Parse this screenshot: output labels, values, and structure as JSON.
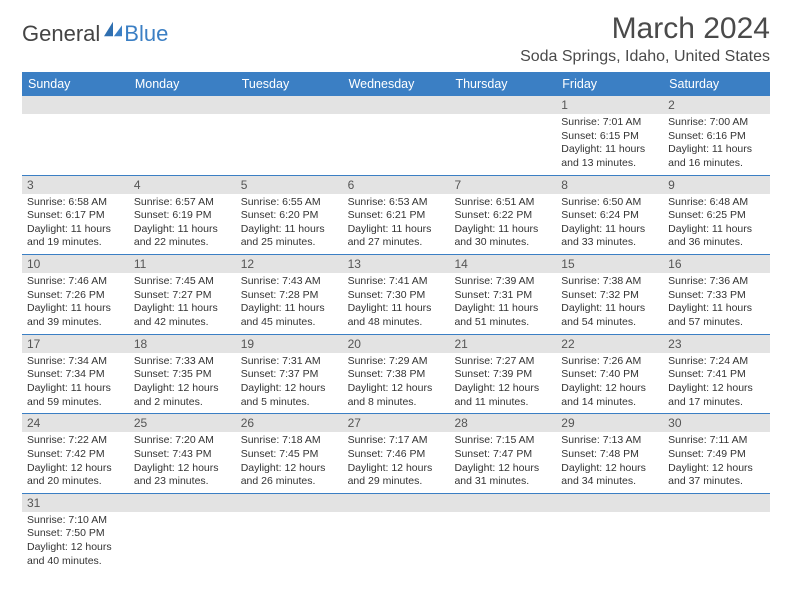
{
  "brand": {
    "name1": "General",
    "name2": "Blue"
  },
  "title": "March 2024",
  "location": "Soda Springs, Idaho, United States",
  "colors": {
    "accent": "#3b7fc4",
    "header_bg": "#3b7fc4",
    "day_bg": "#e3e3e3",
    "text": "#333333"
  },
  "dayNames": [
    "Sunday",
    "Monday",
    "Tuesday",
    "Wednesday",
    "Thursday",
    "Friday",
    "Saturday"
  ],
  "weeks": [
    [
      {
        "empty": true
      },
      {
        "empty": true
      },
      {
        "empty": true
      },
      {
        "empty": true
      },
      {
        "empty": true
      },
      {
        "day": "1",
        "sunrise": "Sunrise: 7:01 AM",
        "sunset": "Sunset: 6:15 PM",
        "daylight": "Daylight: 11 hours and 13 minutes."
      },
      {
        "day": "2",
        "sunrise": "Sunrise: 7:00 AM",
        "sunset": "Sunset: 6:16 PM",
        "daylight": "Daylight: 11 hours and 16 minutes."
      }
    ],
    [
      {
        "day": "3",
        "sunrise": "Sunrise: 6:58 AM",
        "sunset": "Sunset: 6:17 PM",
        "daylight": "Daylight: 11 hours and 19 minutes."
      },
      {
        "day": "4",
        "sunrise": "Sunrise: 6:57 AM",
        "sunset": "Sunset: 6:19 PM",
        "daylight": "Daylight: 11 hours and 22 minutes."
      },
      {
        "day": "5",
        "sunrise": "Sunrise: 6:55 AM",
        "sunset": "Sunset: 6:20 PM",
        "daylight": "Daylight: 11 hours and 25 minutes."
      },
      {
        "day": "6",
        "sunrise": "Sunrise: 6:53 AM",
        "sunset": "Sunset: 6:21 PM",
        "daylight": "Daylight: 11 hours and 27 minutes."
      },
      {
        "day": "7",
        "sunrise": "Sunrise: 6:51 AM",
        "sunset": "Sunset: 6:22 PM",
        "daylight": "Daylight: 11 hours and 30 minutes."
      },
      {
        "day": "8",
        "sunrise": "Sunrise: 6:50 AM",
        "sunset": "Sunset: 6:24 PM",
        "daylight": "Daylight: 11 hours and 33 minutes."
      },
      {
        "day": "9",
        "sunrise": "Sunrise: 6:48 AM",
        "sunset": "Sunset: 6:25 PM",
        "daylight": "Daylight: 11 hours and 36 minutes."
      }
    ],
    [
      {
        "day": "10",
        "sunrise": "Sunrise: 7:46 AM",
        "sunset": "Sunset: 7:26 PM",
        "daylight": "Daylight: 11 hours and 39 minutes."
      },
      {
        "day": "11",
        "sunrise": "Sunrise: 7:45 AM",
        "sunset": "Sunset: 7:27 PM",
        "daylight": "Daylight: 11 hours and 42 minutes."
      },
      {
        "day": "12",
        "sunrise": "Sunrise: 7:43 AM",
        "sunset": "Sunset: 7:28 PM",
        "daylight": "Daylight: 11 hours and 45 minutes."
      },
      {
        "day": "13",
        "sunrise": "Sunrise: 7:41 AM",
        "sunset": "Sunset: 7:30 PM",
        "daylight": "Daylight: 11 hours and 48 minutes."
      },
      {
        "day": "14",
        "sunrise": "Sunrise: 7:39 AM",
        "sunset": "Sunset: 7:31 PM",
        "daylight": "Daylight: 11 hours and 51 minutes."
      },
      {
        "day": "15",
        "sunrise": "Sunrise: 7:38 AM",
        "sunset": "Sunset: 7:32 PM",
        "daylight": "Daylight: 11 hours and 54 minutes."
      },
      {
        "day": "16",
        "sunrise": "Sunrise: 7:36 AM",
        "sunset": "Sunset: 7:33 PM",
        "daylight": "Daylight: 11 hours and 57 minutes."
      }
    ],
    [
      {
        "day": "17",
        "sunrise": "Sunrise: 7:34 AM",
        "sunset": "Sunset: 7:34 PM",
        "daylight": "Daylight: 11 hours and 59 minutes."
      },
      {
        "day": "18",
        "sunrise": "Sunrise: 7:33 AM",
        "sunset": "Sunset: 7:35 PM",
        "daylight": "Daylight: 12 hours and 2 minutes."
      },
      {
        "day": "19",
        "sunrise": "Sunrise: 7:31 AM",
        "sunset": "Sunset: 7:37 PM",
        "daylight": "Daylight: 12 hours and 5 minutes."
      },
      {
        "day": "20",
        "sunrise": "Sunrise: 7:29 AM",
        "sunset": "Sunset: 7:38 PM",
        "daylight": "Daylight: 12 hours and 8 minutes."
      },
      {
        "day": "21",
        "sunrise": "Sunrise: 7:27 AM",
        "sunset": "Sunset: 7:39 PM",
        "daylight": "Daylight: 12 hours and 11 minutes."
      },
      {
        "day": "22",
        "sunrise": "Sunrise: 7:26 AM",
        "sunset": "Sunset: 7:40 PM",
        "daylight": "Daylight: 12 hours and 14 minutes."
      },
      {
        "day": "23",
        "sunrise": "Sunrise: 7:24 AM",
        "sunset": "Sunset: 7:41 PM",
        "daylight": "Daylight: 12 hours and 17 minutes."
      }
    ],
    [
      {
        "day": "24",
        "sunrise": "Sunrise: 7:22 AM",
        "sunset": "Sunset: 7:42 PM",
        "daylight": "Daylight: 12 hours and 20 minutes."
      },
      {
        "day": "25",
        "sunrise": "Sunrise: 7:20 AM",
        "sunset": "Sunset: 7:43 PM",
        "daylight": "Daylight: 12 hours and 23 minutes."
      },
      {
        "day": "26",
        "sunrise": "Sunrise: 7:18 AM",
        "sunset": "Sunset: 7:45 PM",
        "daylight": "Daylight: 12 hours and 26 minutes."
      },
      {
        "day": "27",
        "sunrise": "Sunrise: 7:17 AM",
        "sunset": "Sunset: 7:46 PM",
        "daylight": "Daylight: 12 hours and 29 minutes."
      },
      {
        "day": "28",
        "sunrise": "Sunrise: 7:15 AM",
        "sunset": "Sunset: 7:47 PM",
        "daylight": "Daylight: 12 hours and 31 minutes."
      },
      {
        "day": "29",
        "sunrise": "Sunrise: 7:13 AM",
        "sunset": "Sunset: 7:48 PM",
        "daylight": "Daylight: 12 hours and 34 minutes."
      },
      {
        "day": "30",
        "sunrise": "Sunrise: 7:11 AM",
        "sunset": "Sunset: 7:49 PM",
        "daylight": "Daylight: 12 hours and 37 minutes."
      }
    ],
    [
      {
        "day": "31",
        "sunrise": "Sunrise: 7:10 AM",
        "sunset": "Sunset: 7:50 PM",
        "daylight": "Daylight: 12 hours and 40 minutes."
      },
      {
        "empty": true
      },
      {
        "empty": true
      },
      {
        "empty": true
      },
      {
        "empty": true
      },
      {
        "empty": true
      },
      {
        "empty": true
      }
    ]
  ]
}
